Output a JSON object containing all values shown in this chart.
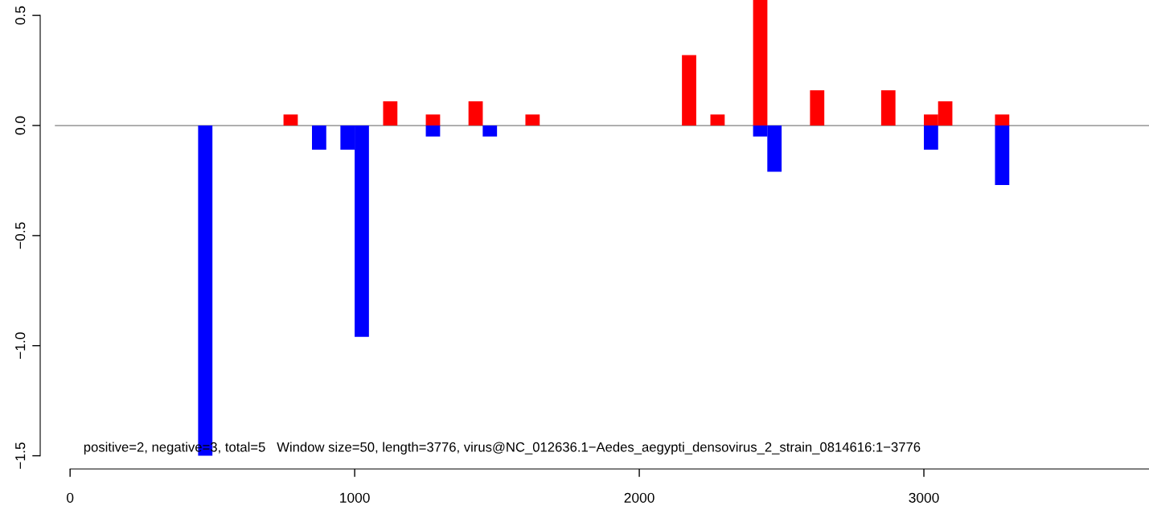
{
  "chart_data": {
    "type": "bar",
    "series": [
      {
        "color": "#ff0000",
        "x": [
          775,
          1125,
          1275,
          1425,
          1625,
          2175,
          2275,
          2425,
          2625,
          2875,
          3025,
          3075,
          3275
        ],
        "values": [
          0.05,
          0.11,
          0.05,
          0.11,
          0.05,
          0.32,
          0.05,
          0.57,
          0.16,
          0.16,
          0.05,
          0.11,
          0.05
        ]
      },
      {
        "color": "#0000ff",
        "x": [
          475,
          875,
          975,
          1025,
          1275,
          1475,
          2425,
          2475,
          3025,
          3275
        ],
        "values": [
          -1.5,
          -0.11,
          -0.11,
          -0.96,
          -0.05,
          -0.05,
          -0.05,
          -0.21,
          -0.11,
          -0.27
        ]
      }
    ],
    "xlim": [
      -105,
      3791
    ],
    "xticks": [
      0,
      1000,
      2000,
      3000
    ],
    "ylim": [
      -1.56,
      0.57
    ],
    "yticks": [
      {
        "value": -1.5,
        "label": "−1.5"
      },
      {
        "value": -1.0,
        "label": "−1.0"
      },
      {
        "value": -0.5,
        "label": "−0.5"
      },
      {
        "value": 0.0,
        "label": "0.0"
      },
      0.5
    ],
    "ref_lines": [
      {
        "axis": "y",
        "value": 0,
        "color": "#808080"
      }
    ],
    "annotations": [
      "positive=2, negative=3, total=5   Window size=50, length=3776, virus@NC_012636.1−Aedes_aegypti_densovirus_2_strain_0814616:1−3776"
    ],
    "grid": false,
    "legend": false
  }
}
